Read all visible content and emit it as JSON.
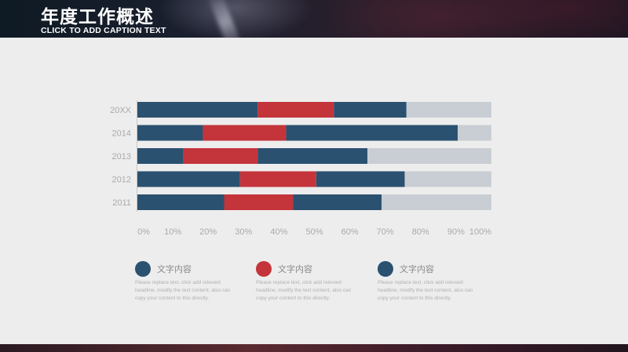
{
  "header": {
    "title": "年度工作概述",
    "caption": "CLICK TO ADD CAPTION TEXT"
  },
  "colors": {
    "navy": "#2b5170",
    "red": "#c4343b",
    "track": "#c9ced4",
    "panel": "#ededed"
  },
  "chart_data": {
    "type": "bar",
    "orientation": "horizontal",
    "stacked": true,
    "categories": [
      "20XX",
      "2014",
      "2013",
      "2012",
      "2011"
    ],
    "x_ticks": [
      "0%",
      "10%",
      "20%",
      "30%",
      "40%",
      "50%",
      "60%",
      "70%",
      "80%",
      "90%",
      "100%"
    ],
    "xlim": [
      0,
      100
    ],
    "series": [
      {
        "color": "#2b5170",
        "values": [
          34,
          18.5,
          13,
          29,
          24.5
        ]
      },
      {
        "color": "#c4343b",
        "values": [
          21.5,
          23.5,
          21,
          21.5,
          19.5
        ]
      },
      {
        "color": "#2b5170",
        "values": [
          20.5,
          48.5,
          31,
          25,
          25
        ]
      },
      {
        "color": "#c9ced4",
        "values": [
          24,
          9.5,
          35,
          24.5,
          31
        ]
      }
    ]
  },
  "legend": [
    {
      "title": "文字内容",
      "color": "#2b5170",
      "desc": "Please replace text, click add relevant headline, modify the text content, also can copy your content to this directly."
    },
    {
      "title": "文字内容",
      "color": "#c4343b",
      "desc": "Please replace text, click add relevant headline, modify the text content, also can copy your content to this directly."
    },
    {
      "title": "文字内容",
      "color": "#2b5170",
      "desc": "Please replace text, click add relevant headline, modify the text content, also can copy your content to this directly."
    }
  ]
}
